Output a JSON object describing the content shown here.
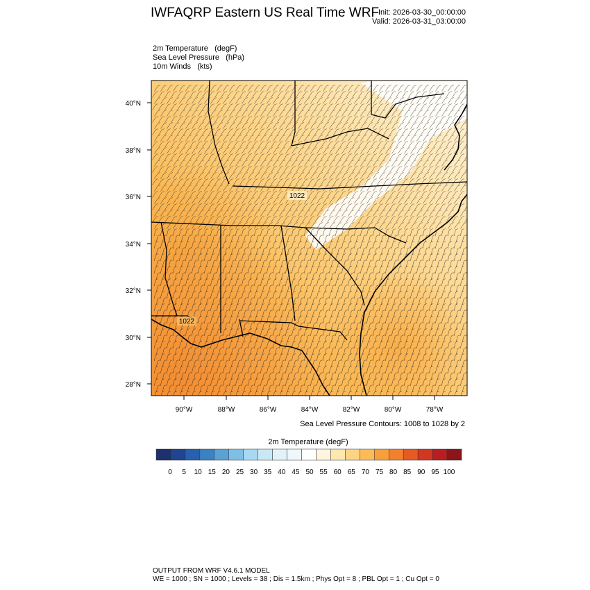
{
  "header": {
    "title": "IWFAQRP Eastern US Real Time WRF",
    "init": "Init: 2026-03-30_00:00:00",
    "valid": "Valid: 2026-03-31_03:00:00"
  },
  "fields": [
    {
      "label": "2m Temperature",
      "units": "(degF)"
    },
    {
      "label": "Sea Level Pressure",
      "units": "(hPa)"
    },
    {
      "label": "10m Winds",
      "units": "(kts)"
    }
  ],
  "map": {
    "lat_ticks": [
      "40°N",
      "38°N",
      "36°N",
      "34°N",
      "32°N",
      "30°N",
      "28°N"
    ],
    "lon_ticks": [
      "90°W",
      "88°W",
      "86°W",
      "84°W",
      "82°W",
      "80°W",
      "78°W"
    ],
    "isobar_labels": [
      "1022",
      "1022"
    ],
    "contour_note": "Sea Level Pressure Contours: 1008 to 1028 by 2"
  },
  "colorbar": {
    "title": "2m Temperature  (degF)",
    "labels": [
      "0",
      "5",
      "10",
      "15",
      "20",
      "25",
      "30",
      "35",
      "40",
      "45",
      "50",
      "55",
      "60",
      "65",
      "70",
      "75",
      "80",
      "85",
      "90",
      "95",
      "100"
    ],
    "colors": [
      "#1d3170",
      "#1f4592",
      "#2760ae",
      "#3b82c4",
      "#5aa1d6",
      "#7fbfe6",
      "#a8d9f2",
      "#c9e8f5",
      "#e2f2f8",
      "#eef7fb",
      "#ffffff",
      "#fff5dc",
      "#ffe7ad",
      "#fdd483",
      "#fbbc58",
      "#f7a03b",
      "#f2812e",
      "#e65a24",
      "#d33722",
      "#b91d22",
      "#8c1519"
    ]
  },
  "footer": {
    "line1": "OUTPUT FROM WRF V4.6.1 MODEL",
    "line2": "WE = 1000 ; SN = 1000 ; Levels = 38 ; Dis = 1.5km ; Phys Opt = 8 ; PBL Opt = 1 ; Cu Opt = 0"
  }
}
